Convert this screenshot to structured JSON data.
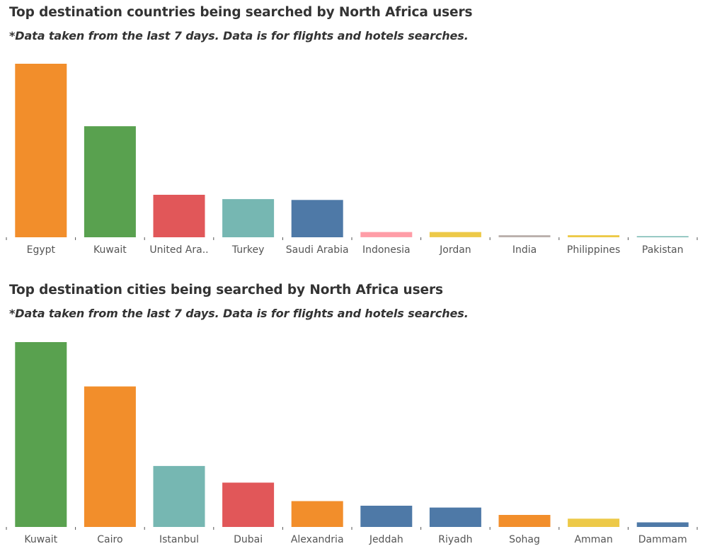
{
  "chart_data": [
    {
      "type": "bar",
      "title": "Top destination countries being searched by North Africa users",
      "subtitle": "*Data taken from the last 7 days. Data is for flights and hotels searches.",
      "categories": [
        "Egypt",
        "Kuwait",
        "United Ara..",
        "Turkey",
        "Saudi Arabia",
        "Indonesia",
        "Jordan",
        "India",
        "Philippines",
        "Pakistan"
      ],
      "values": [
        100,
        64,
        24.5,
        22,
        21.5,
        3,
        3,
        1.2,
        1.2,
        0.4
      ],
      "colors": [
        "#f28e2b",
        "#59a14f",
        "#e15759",
        "#76b7b2",
        "#4e79a7",
        "#ff9da7",
        "#edc948",
        "#bab0ac",
        "#edc948",
        "#76b7b2"
      ],
      "ylim": [
        0,
        100
      ],
      "xlabel": "",
      "ylabel": "",
      "grid": false,
      "legend": "none"
    },
    {
      "type": "bar",
      "title": "Top destination cities being searched by North Africa users",
      "subtitle": "*Data taken from the last 7 days. Data is for flights and hotels searches.",
      "categories": [
        "Kuwait",
        "Cairo",
        "Istanbul",
        "Dubai",
        "Alexandria",
        "Jeddah",
        "Riyadh",
        "Sohag",
        "Amman",
        "Dammam"
      ],
      "values": [
        100,
        76,
        33,
        24,
        14,
        11.5,
        10.5,
        6.5,
        4.5,
        2.5
      ],
      "colors": [
        "#59a14f",
        "#f28e2b",
        "#76b7b2",
        "#e15759",
        "#f28e2b",
        "#4e79a7",
        "#4e79a7",
        "#f28e2b",
        "#edc948",
        "#4e79a7"
      ],
      "ylim": [
        0,
        100
      ],
      "xlabel": "",
      "ylabel": "",
      "grid": false,
      "legend": "none"
    }
  ]
}
